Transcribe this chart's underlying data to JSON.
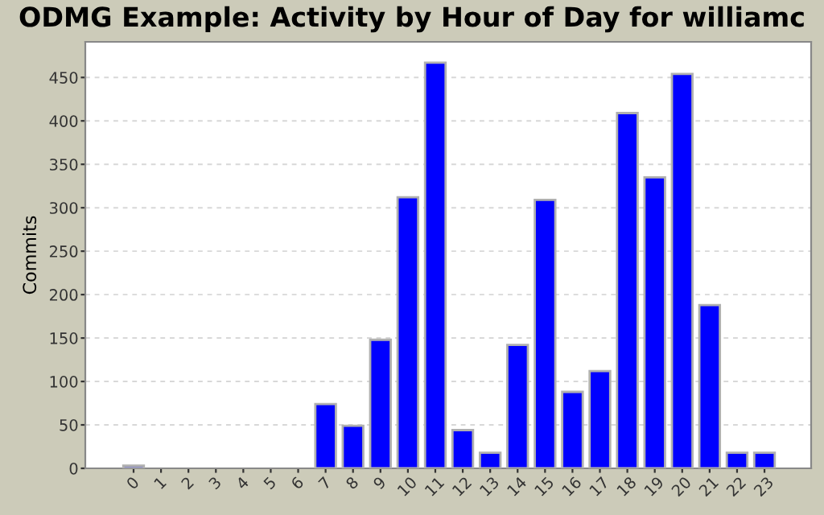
{
  "chart_data": {
    "type": "bar",
    "title": "ODMG Example: Activity by Hour of Day for williamc",
    "ylabel": "Commits",
    "categories": [
      "0",
      "1",
      "2",
      "3",
      "4",
      "5",
      "6",
      "7",
      "8",
      "9",
      "10",
      "11",
      "12",
      "13",
      "14",
      "15",
      "16",
      "17",
      "18",
      "19",
      "20",
      "21",
      "22",
      "23"
    ],
    "values": [
      3,
      0,
      0,
      0,
      0,
      0,
      0,
      74,
      49,
      148,
      312,
      467,
      44,
      18,
      142,
      309,
      88,
      112,
      409,
      335,
      454,
      188,
      18,
      18
    ],
    "color": "#0000ff",
    "ylim": [
      0,
      491
    ],
    "yticks": [
      0,
      50,
      100,
      150,
      200,
      250,
      300,
      350,
      400,
      450
    ],
    "grid": "y"
  }
}
